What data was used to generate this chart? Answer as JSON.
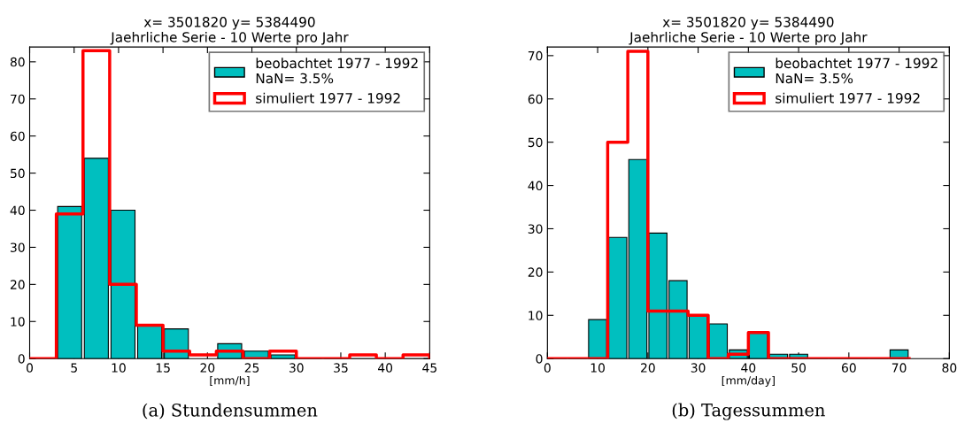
{
  "chart_data": [
    {
      "type": "histogram",
      "title": "x= 3501820 y= 5384490\nJaehrliche Serie - 10 Werte pro Jahr",
      "xlabel": "[mm/h]",
      "annotations": [
        "(a) Stundensummen"
      ],
      "bins": [
        0,
        3,
        6,
        9,
        12,
        15,
        18,
        21,
        24,
        27,
        30,
        33,
        36,
        39,
        42,
        45
      ],
      "series": [
        {
          "name": "beobachtet 1977 - 1992\nNaN= 3.5%",
          "type": "histogram",
          "color": "#00bfbf",
          "values": [
            0,
            41,
            54,
            40,
            9,
            8,
            null,
            4,
            2,
            1,
            0,
            0,
            0,
            0,
            0
          ]
        },
        {
          "name": "simuliert 1977 - 1992",
          "type": "step",
          "color": "#ff0000",
          "x": [
            0,
            3,
            6,
            9,
            12,
            15,
            18,
            21,
            24,
            27,
            30,
            33,
            36,
            39,
            42,
            45
          ],
          "values": [
            0,
            39,
            83,
            20,
            9,
            2,
            1,
            2,
            0,
            2,
            0,
            0,
            1,
            0,
            1,
            0
          ]
        }
      ],
      "xlim": [
        0,
        45
      ],
      "xticks": [
        0,
        5,
        10,
        15,
        20,
        25,
        30,
        35,
        40,
        45
      ],
      "ylim": [
        0,
        84
      ],
      "yticks": [
        0,
        10,
        20,
        30,
        40,
        50,
        60,
        70,
        80
      ],
      "legend": "top right",
      "grid": false
    },
    {
      "type": "histogram",
      "title": "x= 3501820 y= 5384490\nJaehrliche Serie - 10 Werte pro Jahr",
      "xlabel": "[mm/day]",
      "annotations": [
        "(b) Tagessummen"
      ],
      "bins": [
        0,
        4,
        8,
        12,
        16,
        20,
        24,
        28,
        32,
        36,
        40,
        44,
        48,
        52,
        56,
        60,
        64,
        68,
        72
      ],
      "series": [
        {
          "name": "beobachtet 1977 - 1992\nNaN= 3.5%",
          "type": "histogram",
          "color": "#00bfbf",
          "values": [
            0,
            0,
            9,
            28,
            46,
            29,
            18,
            10,
            8,
            2,
            6,
            1,
            1,
            0,
            0,
            0,
            0,
            2
          ]
        },
        {
          "name": "simuliert 1977 - 1992",
          "type": "step",
          "color": "#ff0000",
          "x": [
            0,
            4,
            8,
            12,
            16,
            20,
            24,
            28,
            32,
            36,
            40,
            44,
            48,
            52,
            56,
            60,
            64,
            68,
            72
          ],
          "values": [
            0,
            0,
            0,
            50,
            71,
            11,
            11,
            10,
            0,
            1,
            6,
            0,
            0,
            0,
            0,
            0,
            0,
            0,
            0
          ]
        }
      ],
      "xlim": [
        0,
        80
      ],
      "xticks": [
        0,
        10,
        20,
        30,
        40,
        50,
        60,
        70,
        80
      ],
      "ylim": [
        0,
        72
      ],
      "yticks": [
        0,
        10,
        20,
        30,
        40,
        50,
        60,
        70
      ],
      "legend": "top right",
      "grid": false
    }
  ]
}
